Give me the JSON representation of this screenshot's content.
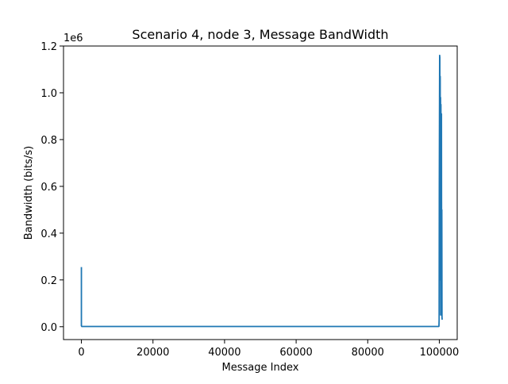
{
  "chart_data": {
    "type": "line",
    "title": "Scenario 4, node 3, Message BandWidth",
    "xlabel": "Message Index",
    "ylabel": "Bandwidth (bits/s)",
    "y_offset_label": "1e6",
    "xlim": [
      -5000,
      105000
    ],
    "ylim": [
      -0.055,
      1.2
    ],
    "y_scale_factor": 1000000,
    "grid": false,
    "x_ticks": [
      0,
      20000,
      40000,
      60000,
      80000,
      100000
    ],
    "x_tick_labels": [
      "0",
      "20000",
      "40000",
      "60000",
      "80000",
      "100000"
    ],
    "y_ticks": [
      0.0,
      0.2,
      0.4,
      0.6,
      0.8,
      1.0,
      1.2
    ],
    "y_tick_labels": [
      "0.0",
      "0.2",
      "0.4",
      "0.6",
      "0.8",
      "1.0",
      "1.2"
    ],
    "series": [
      {
        "color": "#1f77b4",
        "x": [
          0,
          0,
          120,
          30000,
          60000,
          99800,
          99900,
          99950,
          100000,
          100050,
          100100,
          100150,
          100200,
          100250,
          100300,
          100350,
          100400,
          100450,
          100500,
          100550,
          100600,
          100650,
          100700,
          100750,
          100800
        ],
        "values": [
          0.255,
          0.004,
          0.001,
          0.001,
          0.001,
          0.001,
          0.002,
          0.03,
          0.6,
          0.9,
          1.16,
          1.15,
          0.45,
          1.07,
          0.2,
          0.98,
          0.05,
          0.95,
          0.6,
          0.3,
          0.91,
          0.1,
          0.5,
          0.04,
          0.03
        ]
      }
    ]
  }
}
